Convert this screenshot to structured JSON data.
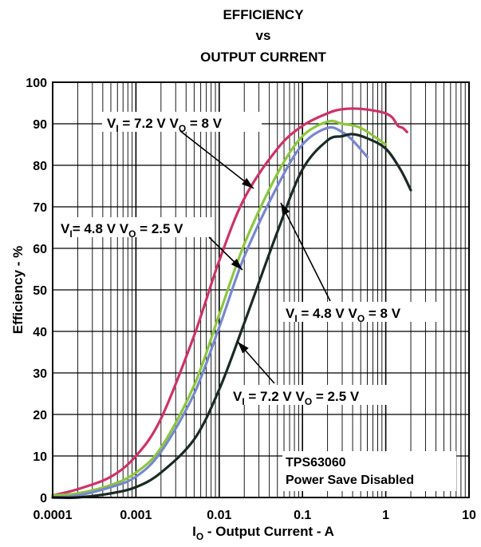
{
  "chart_data": {
    "type": "line",
    "title": [
      "EFFICIENCY",
      "vs",
      "OUTPUT CURRENT"
    ],
    "xlabel": {
      "main": "I",
      "sub": "O",
      "rest": " - Output Current - A"
    },
    "ylabel": "Efficiency - %",
    "xscale": "log",
    "xlim": [
      0.0001,
      10
    ],
    "ylim": [
      0,
      100
    ],
    "grid": true,
    "xticks": [
      "0.0001",
      "0.001",
      "0.01",
      "0.1",
      "1",
      "10"
    ],
    "yticks": [
      "0",
      "10",
      "20",
      "30",
      "40",
      "50",
      "60",
      "70",
      "80",
      "90",
      "100"
    ],
    "note": [
      "TPS63060",
      "Power Save Disabled"
    ],
    "series": [
      {
        "color": "#cc3366",
        "label": {
          "a": "V",
          "asub": "I",
          "b": " = 7.2 V V",
          "bsub": "O",
          "c": " = 8 V"
        },
        "x": [
          0.0001,
          0.0002,
          0.0005,
          0.001,
          0.002,
          0.005,
          0.01,
          0.02,
          0.05,
          0.1,
          0.2,
          0.3,
          0.5,
          0.8,
          1.0,
          1.2,
          1.4,
          1.6,
          1.8
        ],
        "y": [
          0.5,
          2,
          5,
          10,
          19,
          39,
          57,
          72,
          84,
          89.5,
          92.5,
          93.5,
          93.6,
          93,
          92.5,
          91.5,
          89.5,
          89,
          88
        ]
      },
      {
        "color": "#8cc63f",
        "label": {
          "a": "V",
          "asub": "I",
          "b": "= 4.8 V V",
          "bsub": "O",
          "c": " = 2.5 V"
        },
        "x": [
          0.0001,
          0.0002,
          0.0005,
          0.001,
          0.002,
          0.005,
          0.01,
          0.02,
          0.05,
          0.1,
          0.2,
          0.3,
          0.5,
          1.0
        ],
        "y": [
          0.5,
          1,
          3,
          6,
          12,
          27,
          44,
          61,
          78,
          87,
          90.5,
          90,
          89,
          85
        ]
      },
      {
        "color": "#7788cc",
        "label": {
          "a": "V",
          "asub": "I",
          "b": " = 4.8 V V",
          "bsub": "O",
          "c": " = 8 V"
        },
        "x": [
          0.0001,
          0.0002,
          0.0005,
          0.001,
          0.002,
          0.005,
          0.01,
          0.02,
          0.05,
          0.1,
          0.2,
          0.3,
          0.4,
          0.6
        ],
        "y": [
          0,
          0.5,
          2.5,
          5,
          11,
          25,
          41,
          58,
          75,
          85,
          89,
          88,
          86,
          82
        ]
      },
      {
        "color": "#1a2a24",
        "label": {
          "a": "V",
          "asub": "I",
          "b": " = 7.2 V V",
          "bsub": "O",
          "c": " = 2.5 V"
        },
        "x": [
          0.0001,
          0.0002,
          0.0005,
          0.001,
          0.002,
          0.005,
          0.01,
          0.02,
          0.05,
          0.1,
          0.2,
          0.3,
          0.4,
          0.6,
          1.0,
          1.5,
          2.0
        ],
        "y": [
          0,
          0,
          1,
          2.5,
          6,
          14,
          26,
          42,
          64,
          79,
          86,
          87,
          87.5,
          86.5,
          84,
          79,
          74
        ]
      }
    ]
  }
}
